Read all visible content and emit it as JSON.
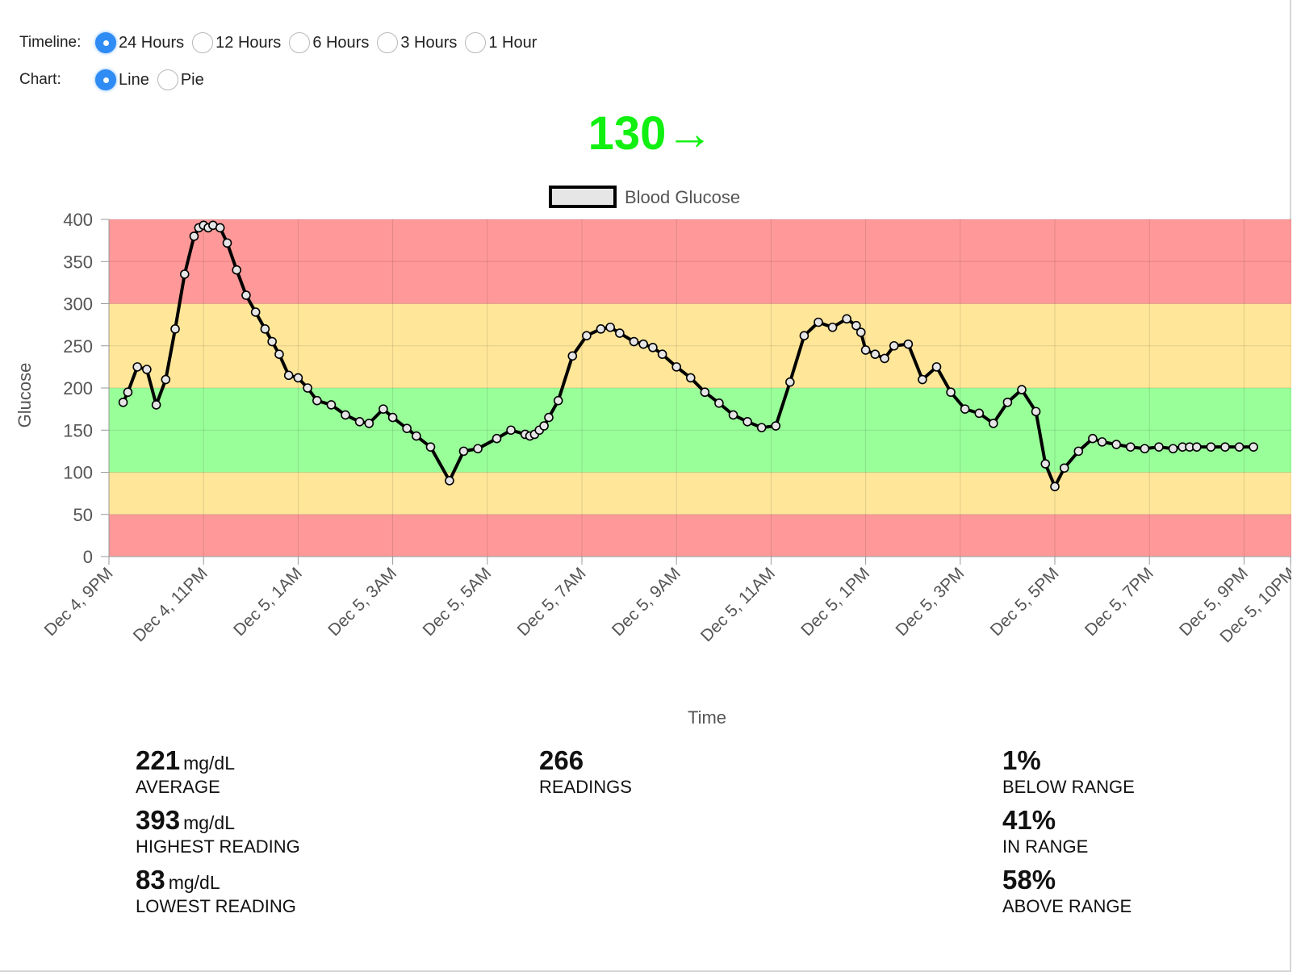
{
  "controls": {
    "timeline_label": "Timeline:",
    "timeline_options": [
      "24 Hours",
      "12 Hours",
      "6 Hours",
      "3 Hours",
      "1 Hour"
    ],
    "timeline_selected": "24 Hours",
    "chart_label": "Chart:",
    "chart_options": [
      "Line",
      "Pie"
    ],
    "chart_selected": "Line"
  },
  "current_reading": {
    "value": "130",
    "arrow": "→",
    "color": "#11f011"
  },
  "chart_data": {
    "type": "line",
    "title": "",
    "legend": "Blood Glucose",
    "legend_position": "top",
    "xlabel": "Time",
    "ylabel": "Glucose",
    "ylim": [
      0,
      400
    ],
    "y_ticks": [
      0,
      50,
      100,
      150,
      200,
      250,
      300,
      350,
      400
    ],
    "grid": true,
    "x_range_hours": [
      0,
      25
    ],
    "x_ticks": [
      {
        "h": 0,
        "label": "Dec 4, 9PM"
      },
      {
        "h": 2,
        "label": "Dec 4, 11PM"
      },
      {
        "h": 4,
        "label": "Dec 5, 1AM"
      },
      {
        "h": 6,
        "label": "Dec 5, 3AM"
      },
      {
        "h": 8,
        "label": "Dec 5, 5AM"
      },
      {
        "h": 10,
        "label": "Dec 5, 7AM"
      },
      {
        "h": 12,
        "label": "Dec 5, 9AM"
      },
      {
        "h": 14,
        "label": "Dec 5, 11AM"
      },
      {
        "h": 16,
        "label": "Dec 5, 1PM"
      },
      {
        "h": 18,
        "label": "Dec 5, 3PM"
      },
      {
        "h": 20,
        "label": "Dec 5, 5PM"
      },
      {
        "h": 22,
        "label": "Dec 5, 7PM"
      },
      {
        "h": 24,
        "label": "Dec 5, 9PM"
      },
      {
        "h": 25,
        "label": "Dec 5, 10PM"
      }
    ],
    "bands": [
      {
        "from": 300,
        "to": 400,
        "color": "#ff9999"
      },
      {
        "from": 200,
        "to": 300,
        "color": "#ffe699"
      },
      {
        "from": 100,
        "to": 200,
        "color": "#99ff99"
      },
      {
        "from": 50,
        "to": 100,
        "color": "#ffe699"
      },
      {
        "from": 0,
        "to": 50,
        "color": "#ff9999"
      }
    ],
    "series": [
      {
        "name": "Blood Glucose",
        "color": "#000000",
        "x": [
          0.3,
          0.4,
          0.6,
          0.8,
          1.0,
          1.2,
          1.4,
          1.6,
          1.8,
          1.9,
          2.0,
          2.1,
          2.2,
          2.35,
          2.5,
          2.7,
          2.9,
          3.1,
          3.3,
          3.45,
          3.6,
          3.8,
          4.0,
          4.2,
          4.4,
          4.7,
          5.0,
          5.3,
          5.5,
          5.8,
          6.0,
          6.3,
          6.5,
          6.8,
          7.2,
          7.5,
          7.8,
          8.2,
          8.5,
          8.8,
          8.9,
          9.0,
          9.1,
          9.2,
          9.3,
          9.5,
          9.8,
          10.1,
          10.4,
          10.6,
          10.8,
          11.1,
          11.3,
          11.5,
          11.7,
          12.0,
          12.3,
          12.6,
          12.9,
          13.2,
          13.5,
          13.8,
          14.1,
          14.4,
          14.7,
          15.0,
          15.3,
          15.6,
          15.8,
          15.9,
          16.0,
          16.2,
          16.4,
          16.6,
          16.9,
          17.2,
          17.5,
          17.8,
          18.1,
          18.4,
          18.7,
          19.0,
          19.3,
          19.6,
          19.8,
          20.0,
          20.2,
          20.5,
          20.8,
          21.0,
          21.3,
          21.6,
          21.9,
          22.2,
          22.5,
          22.7,
          22.85,
          23.0,
          23.3,
          23.6,
          23.9,
          24.2
        ],
        "values": [
          183,
          195,
          225,
          222,
          180,
          210,
          270,
          335,
          380,
          390,
          393,
          390,
          393,
          390,
          372,
          340,
          310,
          290,
          270,
          255,
          240,
          215,
          212,
          200,
          185,
          180,
          168,
          160,
          158,
          175,
          165,
          152,
          143,
          130,
          90,
          125,
          128,
          140,
          150,
          145,
          143,
          145,
          150,
          155,
          165,
          185,
          238,
          262,
          270,
          272,
          265,
          255,
          252,
          248,
          240,
          225,
          212,
          195,
          182,
          168,
          160,
          153,
          155,
          207,
          262,
          278,
          272,
          282,
          274,
          266,
          245,
          240,
          235,
          250,
          252,
          210,
          225,
          195,
          175,
          170,
          158,
          183,
          198,
          172,
          110,
          83,
          105,
          125,
          140,
          136,
          133,
          130,
          128,
          130,
          128,
          130,
          130,
          130,
          130,
          130,
          130,
          130
        ]
      }
    ]
  },
  "stats": {
    "average": {
      "value": "221",
      "unit": "mg/dL",
      "caption": "AVERAGE"
    },
    "highest": {
      "value": "393",
      "unit": "mg/dL",
      "caption": "HIGHEST READING"
    },
    "lowest": {
      "value": "83",
      "unit": "mg/dL",
      "caption": "LOWEST READING"
    },
    "readings": {
      "value": "266",
      "caption": "READINGS"
    },
    "below": {
      "value": "1%",
      "caption": "BELOW RANGE"
    },
    "in_range": {
      "value": "41%",
      "caption": "IN RANGE"
    },
    "above": {
      "value": "58%",
      "caption": "ABOVE RANGE"
    }
  }
}
